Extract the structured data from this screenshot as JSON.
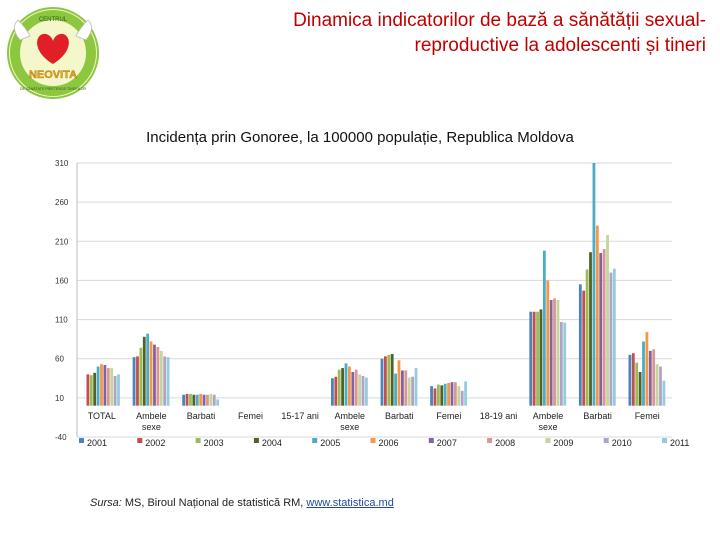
{
  "header": {
    "title_line1": "Dinamica indicatorilor de bază a sănătății sexual-",
    "title_line2": "reproductive la adolescenti și tineri",
    "logo_text_top": "CENTRUL",
    "logo_text_main": "NEOVITA",
    "logo_text_bottom": "DE SĂNĂTATE PRIETENOS TINERILOR"
  },
  "source": {
    "label": "Sursa:",
    "text": " MS, Biroul Național de statistică RM, ",
    "link": "www.statistica.md"
  },
  "chart_data": {
    "type": "bar",
    "title": "Incidența prin Gonoree, la 100000 populație, Republica Moldova",
    "ylim": [
      -40,
      310
    ],
    "yticks": [
      -40,
      10,
      60,
      110,
      160,
      210,
      260,
      310
    ],
    "grid": true,
    "legend_position": "bottom",
    "categories": [
      "TOTAL",
      "Ambele sexe",
      "Barbati",
      "Femei",
      "15-17 ani",
      "Ambele sexe",
      "Barbati",
      "Femei",
      "18-19 ani",
      "Ambele sexe",
      "Barbati",
      "Femei"
    ],
    "series": [
      {
        "name": "2001",
        "color": "#4f81bd",
        "values": [
          0,
          62,
          14,
          0,
          0,
          35,
          60,
          25,
          0,
          120,
          155,
          65
        ]
      },
      {
        "name": "2002",
        "color": "#c0504d",
        "values": [
          40,
          63,
          15,
          0,
          0,
          37,
          63,
          22,
          0,
          120,
          147,
          67
        ]
      },
      {
        "name": "2003",
        "color": "#9bbb59",
        "values": [
          39,
          74,
          15,
          0,
          0,
          46,
          65,
          27,
          0,
          120,
          174,
          55
        ]
      },
      {
        "name": "2004",
        "color": "#4f6228",
        "values": [
          42,
          88,
          14,
          0,
          0,
          48,
          66,
          26,
          0,
          123,
          196,
          43
        ]
      },
      {
        "name": "2005",
        "color": "#4bacc6",
        "values": [
          50,
          92,
          14,
          0,
          0,
          54,
          41,
          28,
          0,
          198,
          310,
          82
        ]
      },
      {
        "name": "2006",
        "color": "#f79646",
        "values": [
          53,
          82,
          15,
          0,
          0,
          50,
          58,
          29,
          0,
          160,
          230,
          94
        ]
      },
      {
        "name": "2007",
        "color": "#8064a2",
        "values": [
          52,
          78,
          14,
          0,
          0,
          43,
          45,
          30,
          0,
          135,
          195,
          70
        ]
      },
      {
        "name": "2008",
        "color": "#d99694",
        "values": [
          48,
          75,
          14,
          0,
          0,
          46,
          45,
          30,
          0,
          137,
          200,
          72
        ]
      },
      {
        "name": "2009",
        "color": "#c3d69b",
        "values": [
          48,
          70,
          15,
          0,
          0,
          40,
          36,
          25,
          0,
          135,
          218,
          53
        ]
      },
      {
        "name": "2010",
        "color": "#b3a2c7",
        "values": [
          38,
          63,
          14,
          0,
          0,
          38,
          37,
          19,
          0,
          107,
          170,
          50
        ]
      },
      {
        "name": "2011",
        "color": "#93cddd",
        "values": [
          40,
          62,
          8,
          0,
          0,
          36,
          48,
          31,
          0,
          106,
          175,
          32
        ]
      }
    ]
  }
}
